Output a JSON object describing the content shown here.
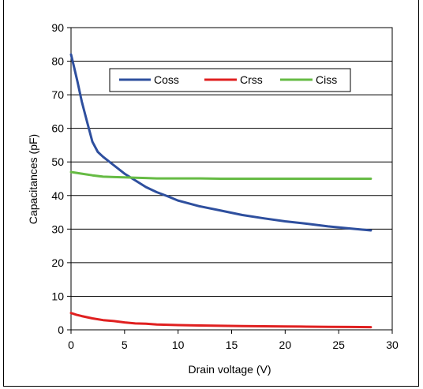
{
  "chart_data": {
    "type": "line",
    "title": "",
    "xlabel": "Drain voltage (V)",
    "ylabel": "Capacitances (pF)",
    "xlim": [
      0,
      30
    ],
    "ylim": [
      0,
      90
    ],
    "xticks": [
      0,
      5,
      10,
      15,
      20,
      25,
      30
    ],
    "yticks": [
      0,
      10,
      20,
      30,
      40,
      50,
      60,
      70,
      80,
      90
    ],
    "grid": "horizontal",
    "legend_position": "top-center",
    "series": [
      {
        "name": "Coss",
        "color": "#2e4f9e",
        "x": [
          0,
          0.3,
          0.6,
          1.0,
          1.5,
          2.0,
          2.5,
          3,
          4,
          5,
          6,
          7,
          8,
          9,
          10,
          12,
          14,
          16,
          18,
          20,
          22,
          24,
          26,
          28
        ],
        "y": [
          82,
          78,
          74,
          68,
          62,
          56,
          53,
          51.5,
          49,
          46.5,
          44.5,
          42.5,
          41,
          39.8,
          38.5,
          36.8,
          35.5,
          34.2,
          33.2,
          32.3,
          31.6,
          30.8,
          30.2,
          29.6
        ]
      },
      {
        "name": "Crss",
        "color": "#e02020",
        "x": [
          0,
          0.5,
          1,
          2,
          3,
          4,
          5,
          6,
          7,
          8,
          10,
          12,
          14,
          16,
          18,
          20,
          22,
          24,
          26,
          28
        ],
        "y": [
          5,
          4.5,
          4.1,
          3.4,
          2.9,
          2.6,
          2.2,
          1.9,
          1.8,
          1.6,
          1.4,
          1.3,
          1.2,
          1.1,
          1.05,
          1.0,
          0.95,
          0.9,
          0.85,
          0.8
        ]
      },
      {
        "name": "Ciss",
        "color": "#66bb44",
        "x": [
          0,
          1,
          2,
          3,
          4,
          5,
          6,
          7,
          8,
          10,
          12,
          14,
          16,
          18,
          20,
          22,
          24,
          26,
          28
        ],
        "y": [
          47,
          46.5,
          46,
          45.6,
          45.5,
          45.4,
          45.3,
          45.2,
          45.1,
          45.1,
          45.1,
          45,
          45,
          45,
          45,
          45,
          45,
          45,
          45
        ]
      }
    ]
  }
}
